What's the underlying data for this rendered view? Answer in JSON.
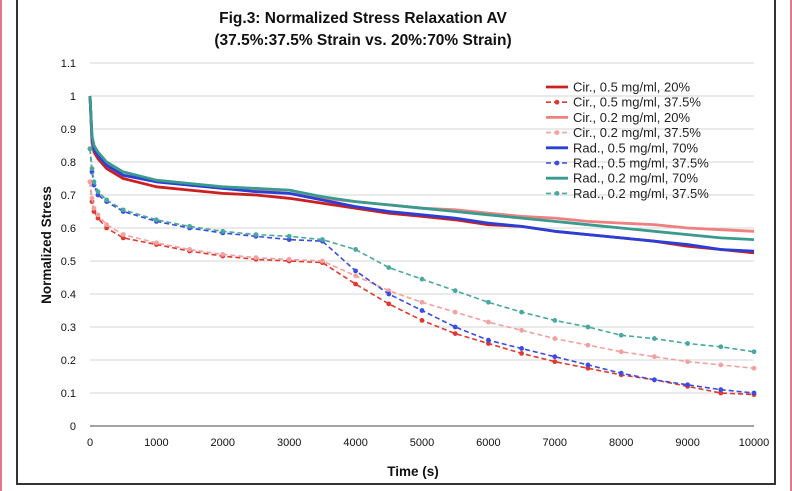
{
  "chart_data": {
    "type": "line",
    "title": "Fig.3: Normalized Stress Relaxation AV",
    "subtitle": "(37.5%:37.5% Strain vs. 20%:70% Strain)",
    "xlabel": "Time (s)",
    "ylabel": "Normalized Stress",
    "xlim": [
      0,
      10000
    ],
    "ylim": [
      0,
      1.1
    ],
    "xticks": [
      0,
      1000,
      2000,
      3000,
      4000,
      5000,
      6000,
      7000,
      8000,
      9000,
      10000
    ],
    "yticks": [
      0,
      0.1,
      0.2,
      0.3,
      0.4,
      0.5,
      0.6,
      0.7,
      0.8,
      0.9,
      1,
      1.1
    ],
    "grid": "horizontal",
    "legend_position": "top-right",
    "series": [
      {
        "name": "Cir., 0.5 mg/ml, 20%",
        "color": "#cc1f1f",
        "dashed": false,
        "marker": false,
        "x": [
          0,
          30,
          60,
          120,
          250,
          500,
          1000,
          1500,
          2000,
          2500,
          3000,
          3500,
          4000,
          4500,
          5000,
          5500,
          6000,
          6500,
          7000,
          7500,
          8000,
          8500,
          9000,
          9500,
          10000
        ],
        "y": [
          1.0,
          0.86,
          0.83,
          0.81,
          0.78,
          0.75,
          0.725,
          0.715,
          0.705,
          0.7,
          0.69,
          0.675,
          0.66,
          0.645,
          0.635,
          0.625,
          0.61,
          0.605,
          0.59,
          0.58,
          0.57,
          0.56,
          0.545,
          0.535,
          0.525
        ]
      },
      {
        "name": "Cir., 0.5 mg/ml, 37.5%",
        "color": "#e0392f",
        "dashed": true,
        "marker": true,
        "x": [
          0,
          30,
          60,
          120,
          250,
          500,
          1000,
          1500,
          2000,
          2500,
          3000,
          3500,
          4000,
          4500,
          5000,
          5500,
          6000,
          6500,
          7000,
          7500,
          8000,
          8500,
          9000,
          9500,
          10000
        ],
        "y": [
          0.74,
          0.68,
          0.65,
          0.63,
          0.6,
          0.57,
          0.55,
          0.53,
          0.515,
          0.505,
          0.5,
          0.495,
          0.43,
          0.37,
          0.32,
          0.28,
          0.25,
          0.22,
          0.195,
          0.175,
          0.155,
          0.14,
          0.12,
          0.1,
          0.095
        ]
      },
      {
        "name": "Cir., 0.2 mg/ml, 20%",
        "color": "#f08080",
        "dashed": false,
        "marker": false,
        "x": [
          0,
          30,
          60,
          120,
          250,
          500,
          1000,
          1500,
          2000,
          2500,
          3000,
          3500,
          4000,
          4500,
          5000,
          5500,
          6000,
          6500,
          7000,
          7500,
          8000,
          8500,
          9000,
          9500,
          10000
        ],
        "y": [
          1.0,
          0.87,
          0.84,
          0.82,
          0.79,
          0.76,
          0.74,
          0.73,
          0.72,
          0.715,
          0.705,
          0.69,
          0.68,
          0.67,
          0.66,
          0.655,
          0.645,
          0.635,
          0.63,
          0.62,
          0.615,
          0.61,
          0.6,
          0.595,
          0.59
        ]
      },
      {
        "name": "Cir., 0.2 mg/ml, 37.5%",
        "color": "#f4a0a0",
        "dashed": true,
        "marker": true,
        "x": [
          0,
          30,
          60,
          120,
          250,
          500,
          1000,
          1500,
          2000,
          2500,
          3000,
          3500,
          4000,
          4500,
          5000,
          5500,
          6000,
          6500,
          7000,
          7500,
          8000,
          8500,
          9000,
          9500,
          10000
        ],
        "y": [
          0.74,
          0.69,
          0.66,
          0.64,
          0.61,
          0.58,
          0.555,
          0.535,
          0.52,
          0.51,
          0.505,
          0.5,
          0.455,
          0.41,
          0.375,
          0.345,
          0.315,
          0.29,
          0.265,
          0.245,
          0.225,
          0.21,
          0.195,
          0.185,
          0.175
        ]
      },
      {
        "name": "Rad., 0.5 mg/ml, 70%",
        "color": "#2a3fd8",
        "dashed": false,
        "marker": false,
        "x": [
          0,
          30,
          60,
          120,
          250,
          500,
          1000,
          1500,
          2000,
          2500,
          3000,
          3500,
          4000,
          4500,
          5000,
          5500,
          6000,
          6500,
          7000,
          7500,
          8000,
          8500,
          9000,
          9500,
          10000
        ],
        "y": [
          1.0,
          0.87,
          0.84,
          0.82,
          0.79,
          0.76,
          0.74,
          0.73,
          0.72,
          0.71,
          0.705,
          0.685,
          0.665,
          0.65,
          0.64,
          0.63,
          0.615,
          0.605,
          0.59,
          0.58,
          0.57,
          0.56,
          0.55,
          0.535,
          0.53
        ]
      },
      {
        "name": "Rad., 0.5 mg/ml, 37.5%",
        "color": "#3a4de0",
        "dashed": true,
        "marker": true,
        "x": [
          0,
          30,
          60,
          120,
          250,
          500,
          1000,
          1500,
          2000,
          2500,
          3000,
          3500,
          4000,
          4500,
          5000,
          5500,
          6000,
          6500,
          7000,
          7500,
          8000,
          8500,
          9000,
          9500,
          10000
        ],
        "y": [
          0.84,
          0.77,
          0.73,
          0.7,
          0.68,
          0.65,
          0.62,
          0.6,
          0.585,
          0.575,
          0.565,
          0.56,
          0.47,
          0.4,
          0.35,
          0.3,
          0.26,
          0.235,
          0.21,
          0.185,
          0.16,
          0.14,
          0.125,
          0.11,
          0.1
        ]
      },
      {
        "name": "Rad., 0.2 mg/ml, 70%",
        "color": "#3a9a8e",
        "dashed": false,
        "marker": false,
        "x": [
          0,
          30,
          60,
          120,
          250,
          500,
          1000,
          1500,
          2000,
          2500,
          3000,
          3500,
          4000,
          4500,
          5000,
          5500,
          6000,
          6500,
          7000,
          7500,
          8000,
          8500,
          9000,
          9500,
          10000
        ],
        "y": [
          1.0,
          0.88,
          0.85,
          0.83,
          0.8,
          0.77,
          0.745,
          0.735,
          0.725,
          0.72,
          0.715,
          0.695,
          0.68,
          0.67,
          0.66,
          0.65,
          0.64,
          0.63,
          0.62,
          0.61,
          0.6,
          0.59,
          0.58,
          0.57,
          0.565
        ]
      },
      {
        "name": "Rad., 0.2 mg/ml, 37.5%",
        "color": "#4aa8a0",
        "dashed": true,
        "marker": true,
        "x": [
          0,
          30,
          60,
          120,
          250,
          500,
          1000,
          1500,
          2000,
          2500,
          3000,
          3500,
          4000,
          4500,
          5000,
          5500,
          6000,
          6500,
          7000,
          7500,
          8000,
          8500,
          9000,
          9500,
          10000
        ],
        "y": [
          0.84,
          0.78,
          0.74,
          0.71,
          0.685,
          0.655,
          0.625,
          0.605,
          0.59,
          0.58,
          0.575,
          0.565,
          0.535,
          0.48,
          0.445,
          0.41,
          0.375,
          0.345,
          0.32,
          0.3,
          0.275,
          0.265,
          0.25,
          0.24,
          0.225
        ]
      }
    ]
  }
}
